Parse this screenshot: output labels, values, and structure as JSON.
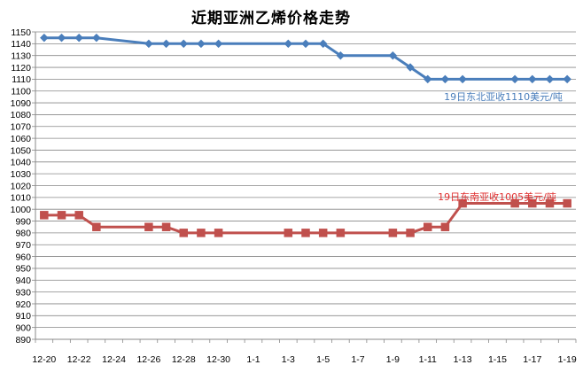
{
  "chart_data": {
    "type": "line",
    "title": "近期亚洲乙烯价格走势",
    "xlabel": "",
    "ylabel": "",
    "ylim": [
      890,
      1150
    ],
    "ytick_step": 10,
    "grid": true,
    "x_tick_labels": [
      "12-20",
      "12-22",
      "12-24",
      "12-26",
      "12-28",
      "12-30",
      "1-1",
      "1-3",
      "1-5",
      "1-7",
      "1-9",
      "1-11",
      "1-13",
      "1-15",
      "1-17",
      "1-19"
    ],
    "series": [
      {
        "name": "",
        "color": "#4a7ebb",
        "marker": "diamond",
        "points": [
          {
            "x": 0,
            "y": 1145
          },
          {
            "x": 1,
            "y": 1145
          },
          {
            "x": 2,
            "y": 1145
          },
          {
            "x": 3,
            "y": 1145
          },
          {
            "x": 6,
            "y": 1140
          },
          {
            "x": 7,
            "y": 1140
          },
          {
            "x": 8,
            "y": 1140
          },
          {
            "x": 9,
            "y": 1140
          },
          {
            "x": 10,
            "y": 1140
          },
          {
            "x": 14,
            "y": 1140
          },
          {
            "x": 15,
            "y": 1140
          },
          {
            "x": 16,
            "y": 1140
          },
          {
            "x": 17,
            "y": 1130
          },
          {
            "x": 20,
            "y": 1130
          },
          {
            "x": 21,
            "y": 1120
          },
          {
            "x": 22,
            "y": 1110
          },
          {
            "x": 23,
            "y": 1110
          },
          {
            "x": 24,
            "y": 1110
          },
          {
            "x": 27,
            "y": 1110
          },
          {
            "x": 28,
            "y": 1110
          },
          {
            "x": 29,
            "y": 1110
          },
          {
            "x": 30,
            "y": 1110
          }
        ]
      },
      {
        "name": "",
        "color": "#c0504d",
        "marker": "square",
        "points": [
          {
            "x": 0,
            "y": 995
          },
          {
            "x": 1,
            "y": 995
          },
          {
            "x": 2,
            "y": 995
          },
          {
            "x": 3,
            "y": 985
          },
          {
            "x": 6,
            "y": 985
          },
          {
            "x": 7,
            "y": 985
          },
          {
            "x": 8,
            "y": 980
          },
          {
            "x": 9,
            "y": 980
          },
          {
            "x": 10,
            "y": 980
          },
          {
            "x": 14,
            "y": 980
          },
          {
            "x": 15,
            "y": 980
          },
          {
            "x": 16,
            "y": 980
          },
          {
            "x": 17,
            "y": 980
          },
          {
            "x": 20,
            "y": 980
          },
          {
            "x": 21,
            "y": 980
          },
          {
            "x": 22,
            "y": 985
          },
          {
            "x": 23,
            "y": 985
          },
          {
            "x": 24,
            "y": 1005
          },
          {
            "x": 27,
            "y": 1005
          },
          {
            "x": 28,
            "y": 1005
          },
          {
            "x": 29,
            "y": 1005
          },
          {
            "x": 30,
            "y": 1005
          }
        ]
      }
    ],
    "annotations": [
      {
        "text": "19日东北亚收1110美元/吨",
        "color": "#4a7ebb"
      },
      {
        "text": "19日东南亚收1005美元/吨",
        "color": "#e03030"
      }
    ]
  }
}
